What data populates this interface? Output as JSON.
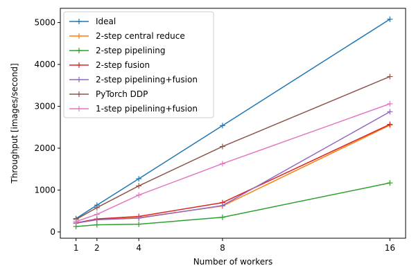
{
  "chart_data": {
    "type": "line",
    "title": "",
    "xlabel": "Number of workers",
    "ylabel": "Throughput [images/second]",
    "x": [
      1,
      2,
      4,
      8,
      16
    ],
    "xticks": [
      1,
      2,
      4,
      8,
      16
    ],
    "yticks": [
      0,
      1000,
      2000,
      3000,
      4000,
      5000
    ],
    "xlim": [
      0.25,
      16.75
    ],
    "ylim": [
      -150,
      5340
    ],
    "grid": false,
    "legend_position": "top-left",
    "marker": "plus",
    "series": [
      {
        "name": "Ideal",
        "color": "#1f77b4",
        "values": [
          320,
          640,
          1270,
          2540,
          5080
        ]
      },
      {
        "name": "2-step central reduce",
        "color": "#ff7f0e",
        "values": [
          210,
          300,
          340,
          620,
          2550
        ]
      },
      {
        "name": "2-step pipelining",
        "color": "#2ca02c",
        "values": [
          130,
          170,
          185,
          350,
          1170
        ]
      },
      {
        "name": "2-step fusion",
        "color": "#d62728",
        "values": [
          215,
          310,
          370,
          700,
          2570
        ]
      },
      {
        "name": "2-step pipelining+fusion",
        "color": "#9467bd",
        "values": [
          210,
          290,
          330,
          630,
          2870
        ]
      },
      {
        "name": "PyTorch DDP",
        "color": "#8c564b",
        "values": [
          300,
          580,
          1100,
          2040,
          3710
        ]
      },
      {
        "name": "1-step pipelining+fusion",
        "color": "#e377c2",
        "values": [
          250,
          420,
          880,
          1630,
          3060
        ]
      }
    ]
  }
}
